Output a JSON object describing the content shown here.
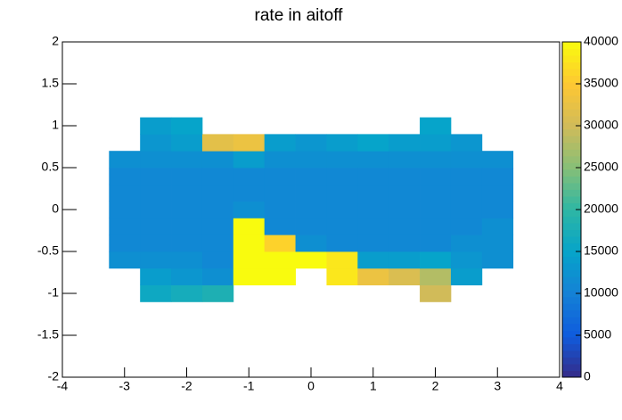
{
  "chart_data": {
    "type": "heatmap",
    "title": "rate in aitoff",
    "xlim": [
      -4,
      4
    ],
    "xticks": [
      -4,
      -3,
      -2,
      -1,
      0,
      1,
      2,
      3,
      4
    ],
    "ylim": [
      -2,
      2
    ],
    "yticks": [
      -2,
      -1.5,
      -1,
      -0.5,
      0,
      0.5,
      1,
      1.5,
      2
    ],
    "xbins": [
      -3.25,
      -2.75,
      -2.25,
      -1.75,
      -1.25,
      -0.75,
      -0.25,
      0.25,
      0.75,
      1.25,
      1.75,
      2.25,
      2.75,
      3.25
    ],
    "ybins": [
      -1.1,
      -0.9,
      -0.7,
      -0.5,
      -0.3,
      -0.1,
      0.1,
      0.3,
      0.5,
      0.7,
      0.9,
      1.1
    ],
    "values": [
      [
        null,
        16000,
        17000,
        18000,
        null,
        null,
        null,
        null,
        null,
        null,
        30000,
        null,
        null
      ],
      [
        null,
        14000,
        13000,
        12000,
        40000,
        40000,
        null,
        38000,
        33000,
        31000,
        28000,
        14000,
        null
      ],
      [
        12000,
        12000,
        12000,
        11000,
        40000,
        40000,
        40000,
        38000,
        14000,
        14000,
        15000,
        13000,
        12000
      ],
      [
        11000,
        11000,
        11000,
        11000,
        40000,
        36000,
        12000,
        11000,
        11000,
        11000,
        11000,
        12000,
        12000
      ],
      [
        11000,
        11000,
        11000,
        11000,
        40000,
        11000,
        11000,
        11000,
        11000,
        11000,
        11000,
        11000,
        12000
      ],
      [
        11000,
        11000,
        11000,
        11000,
        12000,
        11000,
        11000,
        11000,
        11000,
        11000,
        11000,
        11000,
        11000
      ],
      [
        11000,
        11000,
        11000,
        11000,
        11000,
        11000,
        11000,
        11000,
        11000,
        11000,
        11000,
        11000,
        11000
      ],
      [
        11000,
        11000,
        11000,
        11000,
        11000,
        11000,
        11000,
        11000,
        11000,
        11000,
        11000,
        11000,
        11000
      ],
      [
        12000,
        12000,
        12000,
        12000,
        14000,
        12000,
        12000,
        12000,
        12000,
        12000,
        12000,
        12000,
        12000
      ],
      [
        null,
        13000,
        14000,
        32000,
        33000,
        14000,
        13000,
        14000,
        15000,
        14000,
        14000,
        13000,
        null
      ],
      [
        null,
        14000,
        15000,
        null,
        null,
        null,
        null,
        null,
        null,
        null,
        15000,
        null,
        null
      ]
    ],
    "zlim": [
      0,
      40000
    ],
    "zticks": [
      0,
      5000,
      10000,
      15000,
      20000,
      25000,
      30000,
      35000,
      40000
    ],
    "colormap": [
      "#352a87",
      "#0f5cdd",
      "#1481d6",
      "#06a4ca",
      "#2eb7a4",
      "#87bf77",
      "#d1bb59",
      "#fec832",
      "#f9fb0e"
    ]
  }
}
